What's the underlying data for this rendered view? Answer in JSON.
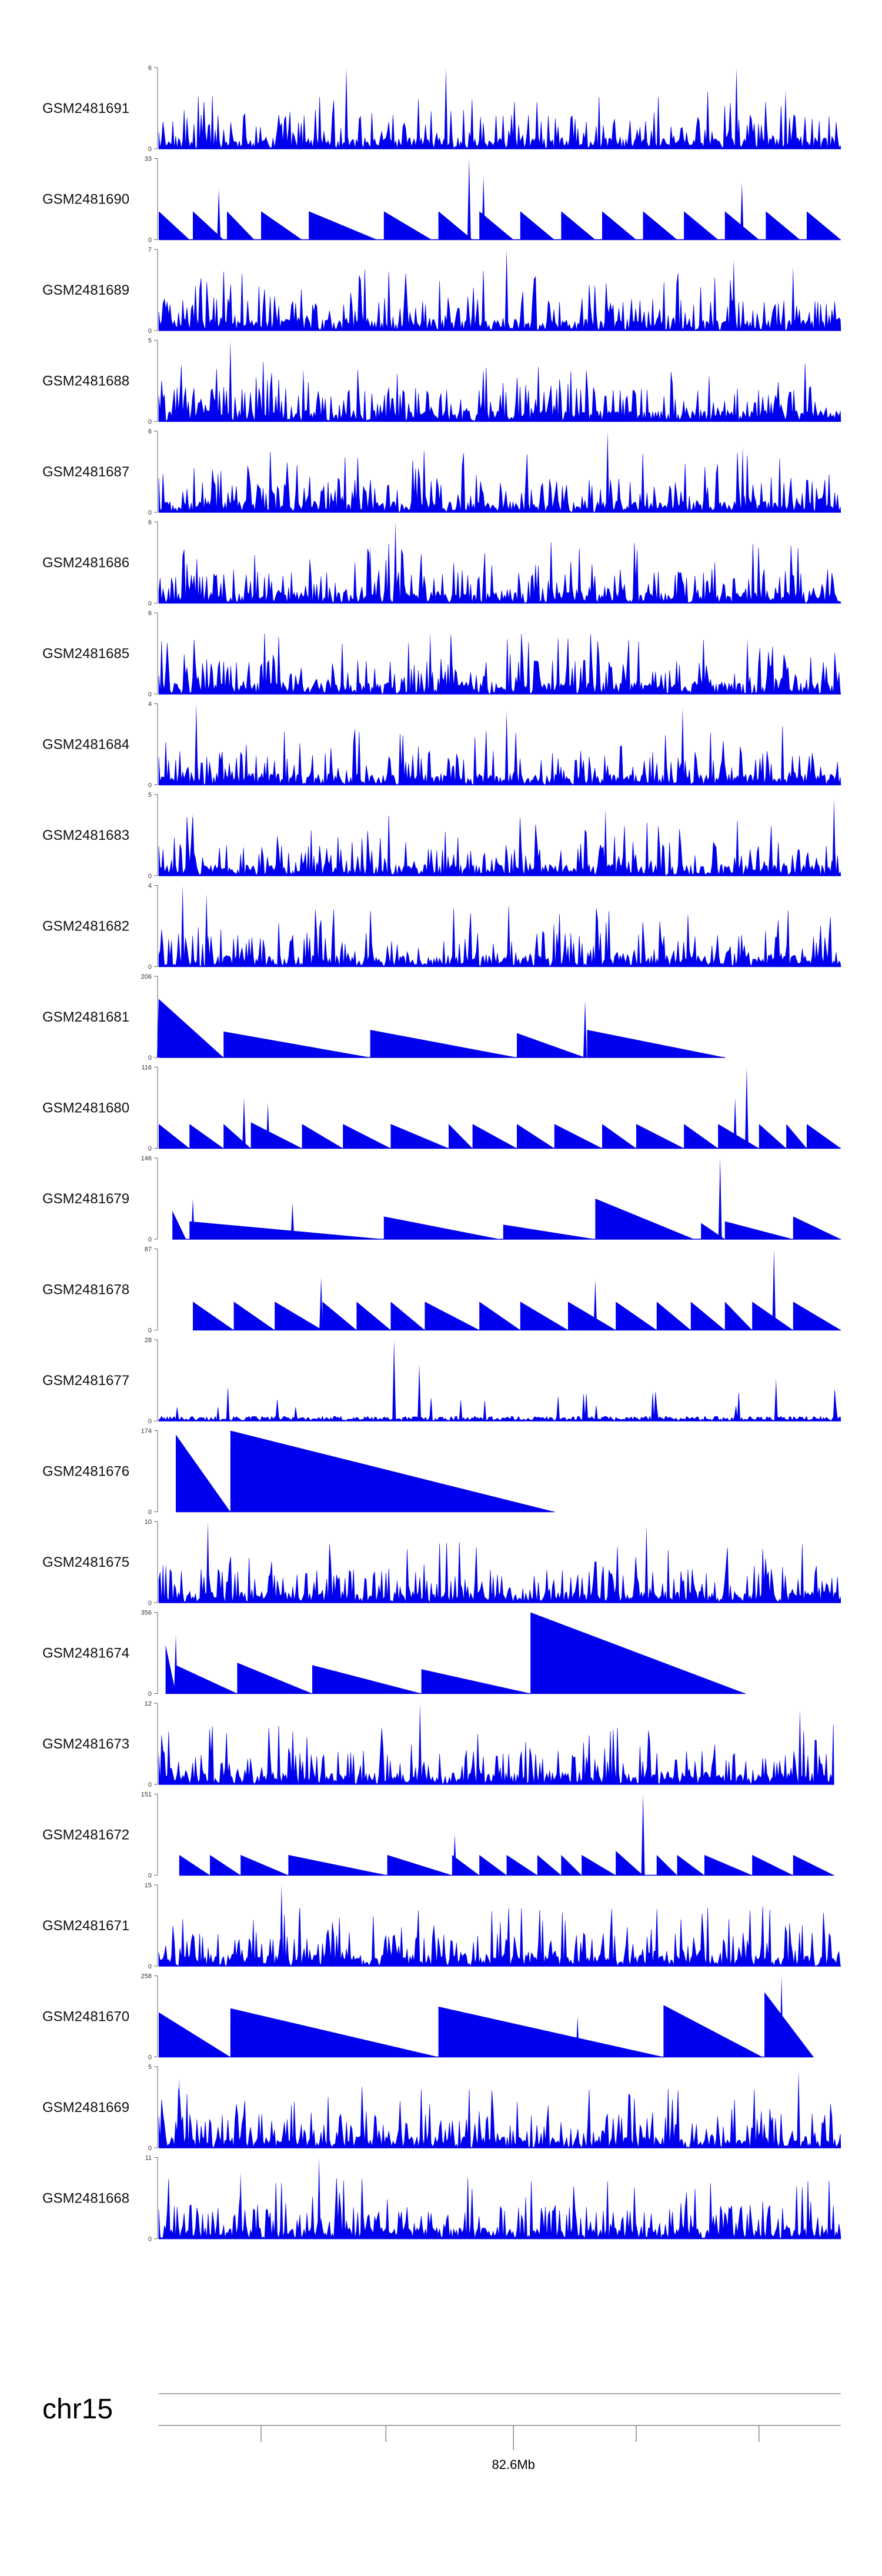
{
  "colors": {
    "fill": "#0000ee",
    "axis": "#666666",
    "text": "#111111"
  },
  "chart_data": {
    "type": "area",
    "title": "",
    "x_range": [
      0,
      1000
    ],
    "tracks": [
      {
        "name": "GSM2481691",
        "ymax": "6",
        "ymin": "0",
        "kind": "dense",
        "seed": 11,
        "extent": [
          0,
          1000
        ],
        "spikes": [
          [
            275,
            1.0
          ],
          [
            421,
            1.0
          ],
          [
            847,
            1.0
          ],
          [
            919,
            0.72
          ]
        ]
      },
      {
        "name": "GSM2481690",
        "ymax": "33",
        "ymin": "0",
        "kind": "tri",
        "extent": [
          0,
          1000
        ],
        "tris": [
          [
            0,
            45,
            0.35
          ],
          [
            50,
            95,
            0.35
          ],
          [
            100,
            140,
            0.35
          ],
          [
            150,
            210,
            0.35
          ],
          [
            220,
            320,
            0.35
          ],
          [
            330,
            400,
            0.35
          ],
          [
            410,
            460,
            0.35
          ],
          [
            470,
            520,
            0.35
          ],
          [
            530,
            580,
            0.35
          ],
          [
            590,
            640,
            0.35
          ],
          [
            650,
            700,
            0.35
          ],
          [
            710,
            760,
            0.35
          ],
          [
            770,
            820,
            0.35
          ],
          [
            830,
            880,
            0.35
          ],
          [
            890,
            940,
            0.35
          ],
          [
            950,
            1000,
            0.35
          ]
        ],
        "spikes": [
          [
            88,
            0.62
          ],
          [
            455,
            1.0
          ],
          [
            476,
            0.78
          ],
          [
            855,
            0.7
          ]
        ]
      },
      {
        "name": "GSM2481689",
        "ymax": "7",
        "ymin": "0",
        "kind": "dense",
        "seed": 23,
        "extent": [
          0,
          1000
        ],
        "spikes": [
          [
            510,
            1.0
          ],
          [
            843,
            0.88
          ],
          [
            930,
            0.78
          ]
        ]
      },
      {
        "name": "GSM2481688",
        "ymax": "5",
        "ymin": "0",
        "kind": "dense",
        "seed": 37,
        "extent": [
          0,
          1000
        ],
        "spikes": [
          [
            105,
            1.0
          ],
          [
            212,
            0.65
          ]
        ]
      },
      {
        "name": "GSM2481687",
        "ymax": "6",
        "ymin": "0",
        "kind": "dense",
        "seed": 41,
        "extent": [
          0,
          1000
        ],
        "spikes": [
          [
            658,
            1.0
          ],
          [
            856,
            0.8
          ]
        ]
      },
      {
        "name": "GSM2481686",
        "ymax": "6",
        "ymin": "0",
        "kind": "dense",
        "seed": 53,
        "extent": [
          0,
          1000
        ],
        "spikes": [
          [
            347,
            1.0
          ],
          [
            310,
            0.7
          ]
        ]
      },
      {
        "name": "GSM2481685",
        "ymax": "6",
        "ymin": "0",
        "kind": "dense",
        "seed": 67,
        "extent": [
          0,
          1000
        ],
        "spikes": [
          [
            398,
            0.75
          ],
          [
            863,
            0.68
          ]
        ]
      },
      {
        "name": "GSM2481684",
        "ymax": "4",
        "ymin": "0",
        "kind": "dense",
        "seed": 71,
        "extent": [
          0,
          1000
        ],
        "spikes": [
          [
            55,
            1.0
          ],
          [
            510,
            0.9
          ],
          [
            768,
            0.95
          ]
        ]
      },
      {
        "name": "GSM2481683",
        "ymax": "5",
        "ymin": "0",
        "kind": "dense",
        "seed": 83,
        "extent": [
          0,
          1000
        ],
        "spikes": [
          [
            990,
            0.95
          ],
          [
            655,
            0.82
          ],
          [
            50,
            0.78
          ]
        ]
      },
      {
        "name": "GSM2481682",
        "ymax": "4",
        "ymin": "0",
        "kind": "dense",
        "seed": 97,
        "extent": [
          0,
          1000
        ],
        "spikes": [
          [
            35,
            1.0
          ],
          [
            70,
            0.9
          ]
        ]
      },
      {
        "name": "GSM2481681",
        "ymax": "206",
        "ymin": "0",
        "kind": "tri",
        "extent": [
          0,
          830
        ],
        "tris": [
          [
            0,
            95,
            0.72
          ],
          [
            95,
            310,
            0.32
          ],
          [
            310,
            525,
            0.34
          ],
          [
            525,
            625,
            0.3
          ],
          [
            628,
            830,
            0.34
          ]
        ],
        "spikes": [
          [
            625,
            0.7
          ],
          [
            0,
            0.75
          ]
        ]
      },
      {
        "name": "GSM2481680",
        "ymax": "116",
        "ymin": "0",
        "kind": "tri",
        "extent": [
          0,
          1000
        ],
        "tris": [
          [
            0,
            45,
            0.3
          ],
          [
            45,
            95,
            0.3
          ],
          [
            95,
            135,
            0.3
          ],
          [
            135,
            210,
            0.32
          ],
          [
            210,
            270,
            0.3
          ],
          [
            270,
            340,
            0.3
          ],
          [
            340,
            425,
            0.3
          ],
          [
            425,
            460,
            0.3
          ],
          [
            460,
            525,
            0.3
          ],
          [
            525,
            580,
            0.3
          ],
          [
            580,
            650,
            0.3
          ],
          [
            650,
            700,
            0.3
          ],
          [
            700,
            770,
            0.3
          ],
          [
            770,
            820,
            0.3
          ],
          [
            820,
            880,
            0.3
          ],
          [
            880,
            920,
            0.3
          ],
          [
            920,
            950,
            0.3
          ],
          [
            950,
            1000,
            0.3
          ]
        ],
        "spikes": [
          [
            125,
            0.62
          ],
          [
            160,
            0.56
          ],
          [
            845,
            0.62
          ],
          [
            862,
            1.0
          ]
        ]
      },
      {
        "name": "GSM2481679",
        "ymax": "146",
        "ymin": "0",
        "kind": "tri",
        "extent": [
          20,
          1000
        ],
        "tris": [
          [
            20,
            40,
            0.35
          ],
          [
            45,
            330,
            0.22
          ],
          [
            330,
            500,
            0.28
          ],
          [
            505,
            640,
            0.18
          ],
          [
            640,
            785,
            0.5
          ],
          [
            795,
            830,
            0.2
          ],
          [
            830,
            930,
            0.22
          ],
          [
            930,
            1000,
            0.28
          ]
        ],
        "spikes": [
          [
            50,
            0.5
          ],
          [
            196,
            0.45
          ],
          [
            823,
            1.0
          ]
        ]
      },
      {
        "name": "GSM2481678",
        "ymax": "87",
        "ymin": "0",
        "kind": "tri",
        "extent": [
          50,
          1000
        ],
        "tris": [
          [
            50,
            110,
            0.35
          ],
          [
            110,
            170,
            0.35
          ],
          [
            170,
            240,
            0.35
          ],
          [
            240,
            290,
            0.35
          ],
          [
            290,
            340,
            0.35
          ],
          [
            340,
            390,
            0.35
          ],
          [
            390,
            470,
            0.35
          ],
          [
            470,
            530,
            0.35
          ],
          [
            530,
            600,
            0.35
          ],
          [
            600,
            670,
            0.35
          ],
          [
            670,
            730,
            0.35
          ],
          [
            730,
            780,
            0.35
          ],
          [
            780,
            830,
            0.35
          ],
          [
            830,
            870,
            0.35
          ],
          [
            870,
            930,
            0.35
          ],
          [
            930,
            1000,
            0.35
          ]
        ],
        "spikes": [
          [
            238,
            0.65
          ],
          [
            640,
            0.62
          ],
          [
            902,
            1.0
          ]
        ]
      },
      {
        "name": "GSM2481677",
        "ymax": "28",
        "ymin": "0",
        "kind": "sparse",
        "seed": 101,
        "extent": [
          0,
          1000
        ],
        "spikes": [
          [
            345,
            1.0
          ],
          [
            382,
            0.7
          ],
          [
            905,
            0.52
          ]
        ]
      },
      {
        "name": "GSM2481676",
        "ymax": "174",
        "ymin": "0",
        "kind": "tri",
        "extent": [
          25,
          580
        ],
        "tris": [
          [
            25,
            105,
            0.95
          ],
          [
            105,
            580,
            1.0
          ]
        ],
        "spikes": []
      },
      {
        "name": "GSM2481675",
        "ymax": "10",
        "ymin": "0",
        "kind": "dense",
        "seed": 113,
        "extent": [
          0,
          1000
        ],
        "spikes": [
          [
            72,
            1.0
          ],
          [
            715,
            0.95
          ]
        ]
      },
      {
        "name": "GSM2481674",
        "ymax": "356",
        "ymin": "0",
        "kind": "tri",
        "extent": [
          10,
          860
        ],
        "tris": [
          [
            10,
            25,
            0.6
          ],
          [
            25,
            115,
            0.35
          ],
          [
            115,
            225,
            0.38
          ],
          [
            225,
            385,
            0.35
          ],
          [
            385,
            545,
            0.3
          ],
          [
            545,
            860,
            1.0
          ]
        ],
        "spikes": [
          [
            25,
            0.72
          ],
          [
            260,
            0.3
          ]
        ]
      },
      {
        "name": "GSM2481673",
        "ymax": "12",
        "ymin": "0",
        "kind": "dense",
        "seed": 127,
        "extent": [
          0,
          990
        ],
        "spikes": [
          [
            383,
            1.0
          ],
          [
            940,
            0.92
          ]
        ]
      },
      {
        "name": "GSM2481672",
        "ymax": "151",
        "ymin": "0",
        "kind": "tri",
        "extent": [
          30,
          990
        ],
        "tris": [
          [
            30,
            75,
            0.25
          ],
          [
            75,
            120,
            0.25
          ],
          [
            120,
            190,
            0.25
          ],
          [
            190,
            335,
            0.25
          ],
          [
            335,
            430,
            0.25
          ],
          [
            430,
            470,
            0.25
          ],
          [
            470,
            510,
            0.25
          ],
          [
            510,
            555,
            0.25
          ],
          [
            555,
            590,
            0.25
          ],
          [
            590,
            620,
            0.25
          ],
          [
            620,
            670,
            0.25
          ],
          [
            670,
            710,
            0.3
          ],
          [
            730,
            760,
            0.25
          ],
          [
            760,
            800,
            0.25
          ],
          [
            800,
            870,
            0.25
          ],
          [
            870,
            930,
            0.25
          ],
          [
            930,
            990,
            0.25
          ]
        ],
        "spikes": [
          [
            434,
            0.5
          ],
          [
            710,
            1.0
          ]
        ]
      },
      {
        "name": "GSM2481671",
        "ymax": "15",
        "ymin": "0",
        "kind": "dense",
        "seed": 131,
        "extent": [
          0,
          1000
        ],
        "spikes": [
          [
            180,
            1.0
          ],
          [
            206,
            0.72
          ]
        ]
      },
      {
        "name": "GSM2481670",
        "ymax": "258",
        "ymin": "0",
        "kind": "tri",
        "extent": [
          0,
          960
        ],
        "tris": [
          [
            0,
            105,
            0.55
          ],
          [
            105,
            410,
            0.6
          ],
          [
            410,
            740,
            0.62
          ],
          [
            740,
            885,
            0.64
          ],
          [
            888,
            960,
            0.8
          ]
        ],
        "spikes": [
          [
            614,
            0.5
          ],
          [
            913,
            1.0
          ]
        ]
      },
      {
        "name": "GSM2481669",
        "ymax": "5",
        "ymin": "0",
        "kind": "dense",
        "seed": 139,
        "extent": [
          0,
          1000
        ],
        "spikes": [
          [
            938,
            0.95
          ],
          [
            30,
            0.86
          ]
        ]
      },
      {
        "name": "GSM2481668",
        "ymax": "11",
        "ymin": "0",
        "kind": "dense",
        "seed": 149,
        "extent": [
          0,
          1000
        ],
        "spikes": [
          [
            235,
            1.0
          ],
          [
            120,
            0.82
          ]
        ]
      }
    ],
    "axis": {
      "chromosome": "chr15",
      "ticks": [
        150,
        333,
        520,
        700,
        880
      ],
      "major_tick": 520,
      "labels": [
        {
          "x": 520,
          "text": "82.6Mb"
        }
      ]
    }
  }
}
